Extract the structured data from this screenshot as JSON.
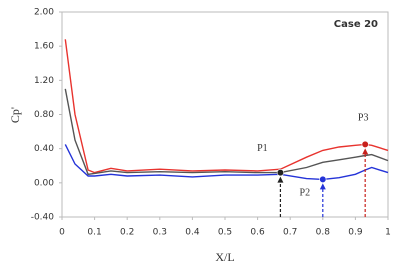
{
  "chart_data": {
    "type": "line",
    "x_label": "X/L",
    "y_label": "Cp'",
    "annotation_title": "Case 20",
    "x": [
      0.01,
      0.04,
      0.08,
      0.1,
      0.15,
      0.2,
      0.3,
      0.4,
      0.5,
      0.6,
      0.67,
      0.75,
      0.8,
      0.85,
      0.9,
      0.93,
      0.95,
      1.0
    ],
    "series": [
      {
        "color": "#e8332e",
        "values": [
          1.68,
          0.8,
          0.15,
          0.12,
          0.17,
          0.14,
          0.16,
          0.14,
          0.15,
          0.14,
          0.16,
          0.3,
          0.38,
          0.42,
          0.44,
          0.45,
          0.44,
          0.38
        ]
      },
      {
        "color": "#555555",
        "values": [
          1.1,
          0.5,
          0.1,
          0.11,
          0.14,
          0.12,
          0.13,
          0.12,
          0.13,
          0.12,
          0.12,
          0.18,
          0.24,
          0.27,
          0.3,
          0.32,
          0.33,
          0.26
        ]
      },
      {
        "color": "#2433d8",
        "values": [
          0.45,
          0.22,
          0.08,
          0.08,
          0.1,
          0.08,
          0.09,
          0.07,
          0.09,
          0.09,
          0.1,
          0.05,
          0.04,
          0.06,
          0.1,
          0.15,
          0.18,
          0.12
        ]
      }
    ],
    "annotations": [
      {
        "text": "P1",
        "x": 0.67,
        "y": 0.12,
        "color": "#222222"
      },
      {
        "text": "P2",
        "x": 0.8,
        "y": 0.04,
        "color": "#2433d8"
      },
      {
        "text": "P3",
        "x": 0.93,
        "y": 0.45,
        "color": "#c8201c"
      }
    ],
    "xlim": [
      0,
      1
    ],
    "ylim": [
      -0.4,
      2.0
    ],
    "xticks": [
      0,
      0.1,
      0.2,
      0.3,
      0.4,
      0.5,
      0.6,
      0.7,
      0.8,
      0.9,
      1
    ],
    "yticks": [
      {
        "value": -0.4,
        "label": "-0.40"
      },
      {
        "value": 0,
        "label": "0.00"
      },
      {
        "value": 0.4,
        "label": "0.40"
      },
      {
        "value": 0.8,
        "label": "0.80"
      },
      {
        "value": 1.2,
        "label": "1.20"
      },
      {
        "value": 1.6,
        "label": "1.60"
      },
      {
        "value": 2.0,
        "label": "2.00"
      }
    ],
    "grid": false
  }
}
